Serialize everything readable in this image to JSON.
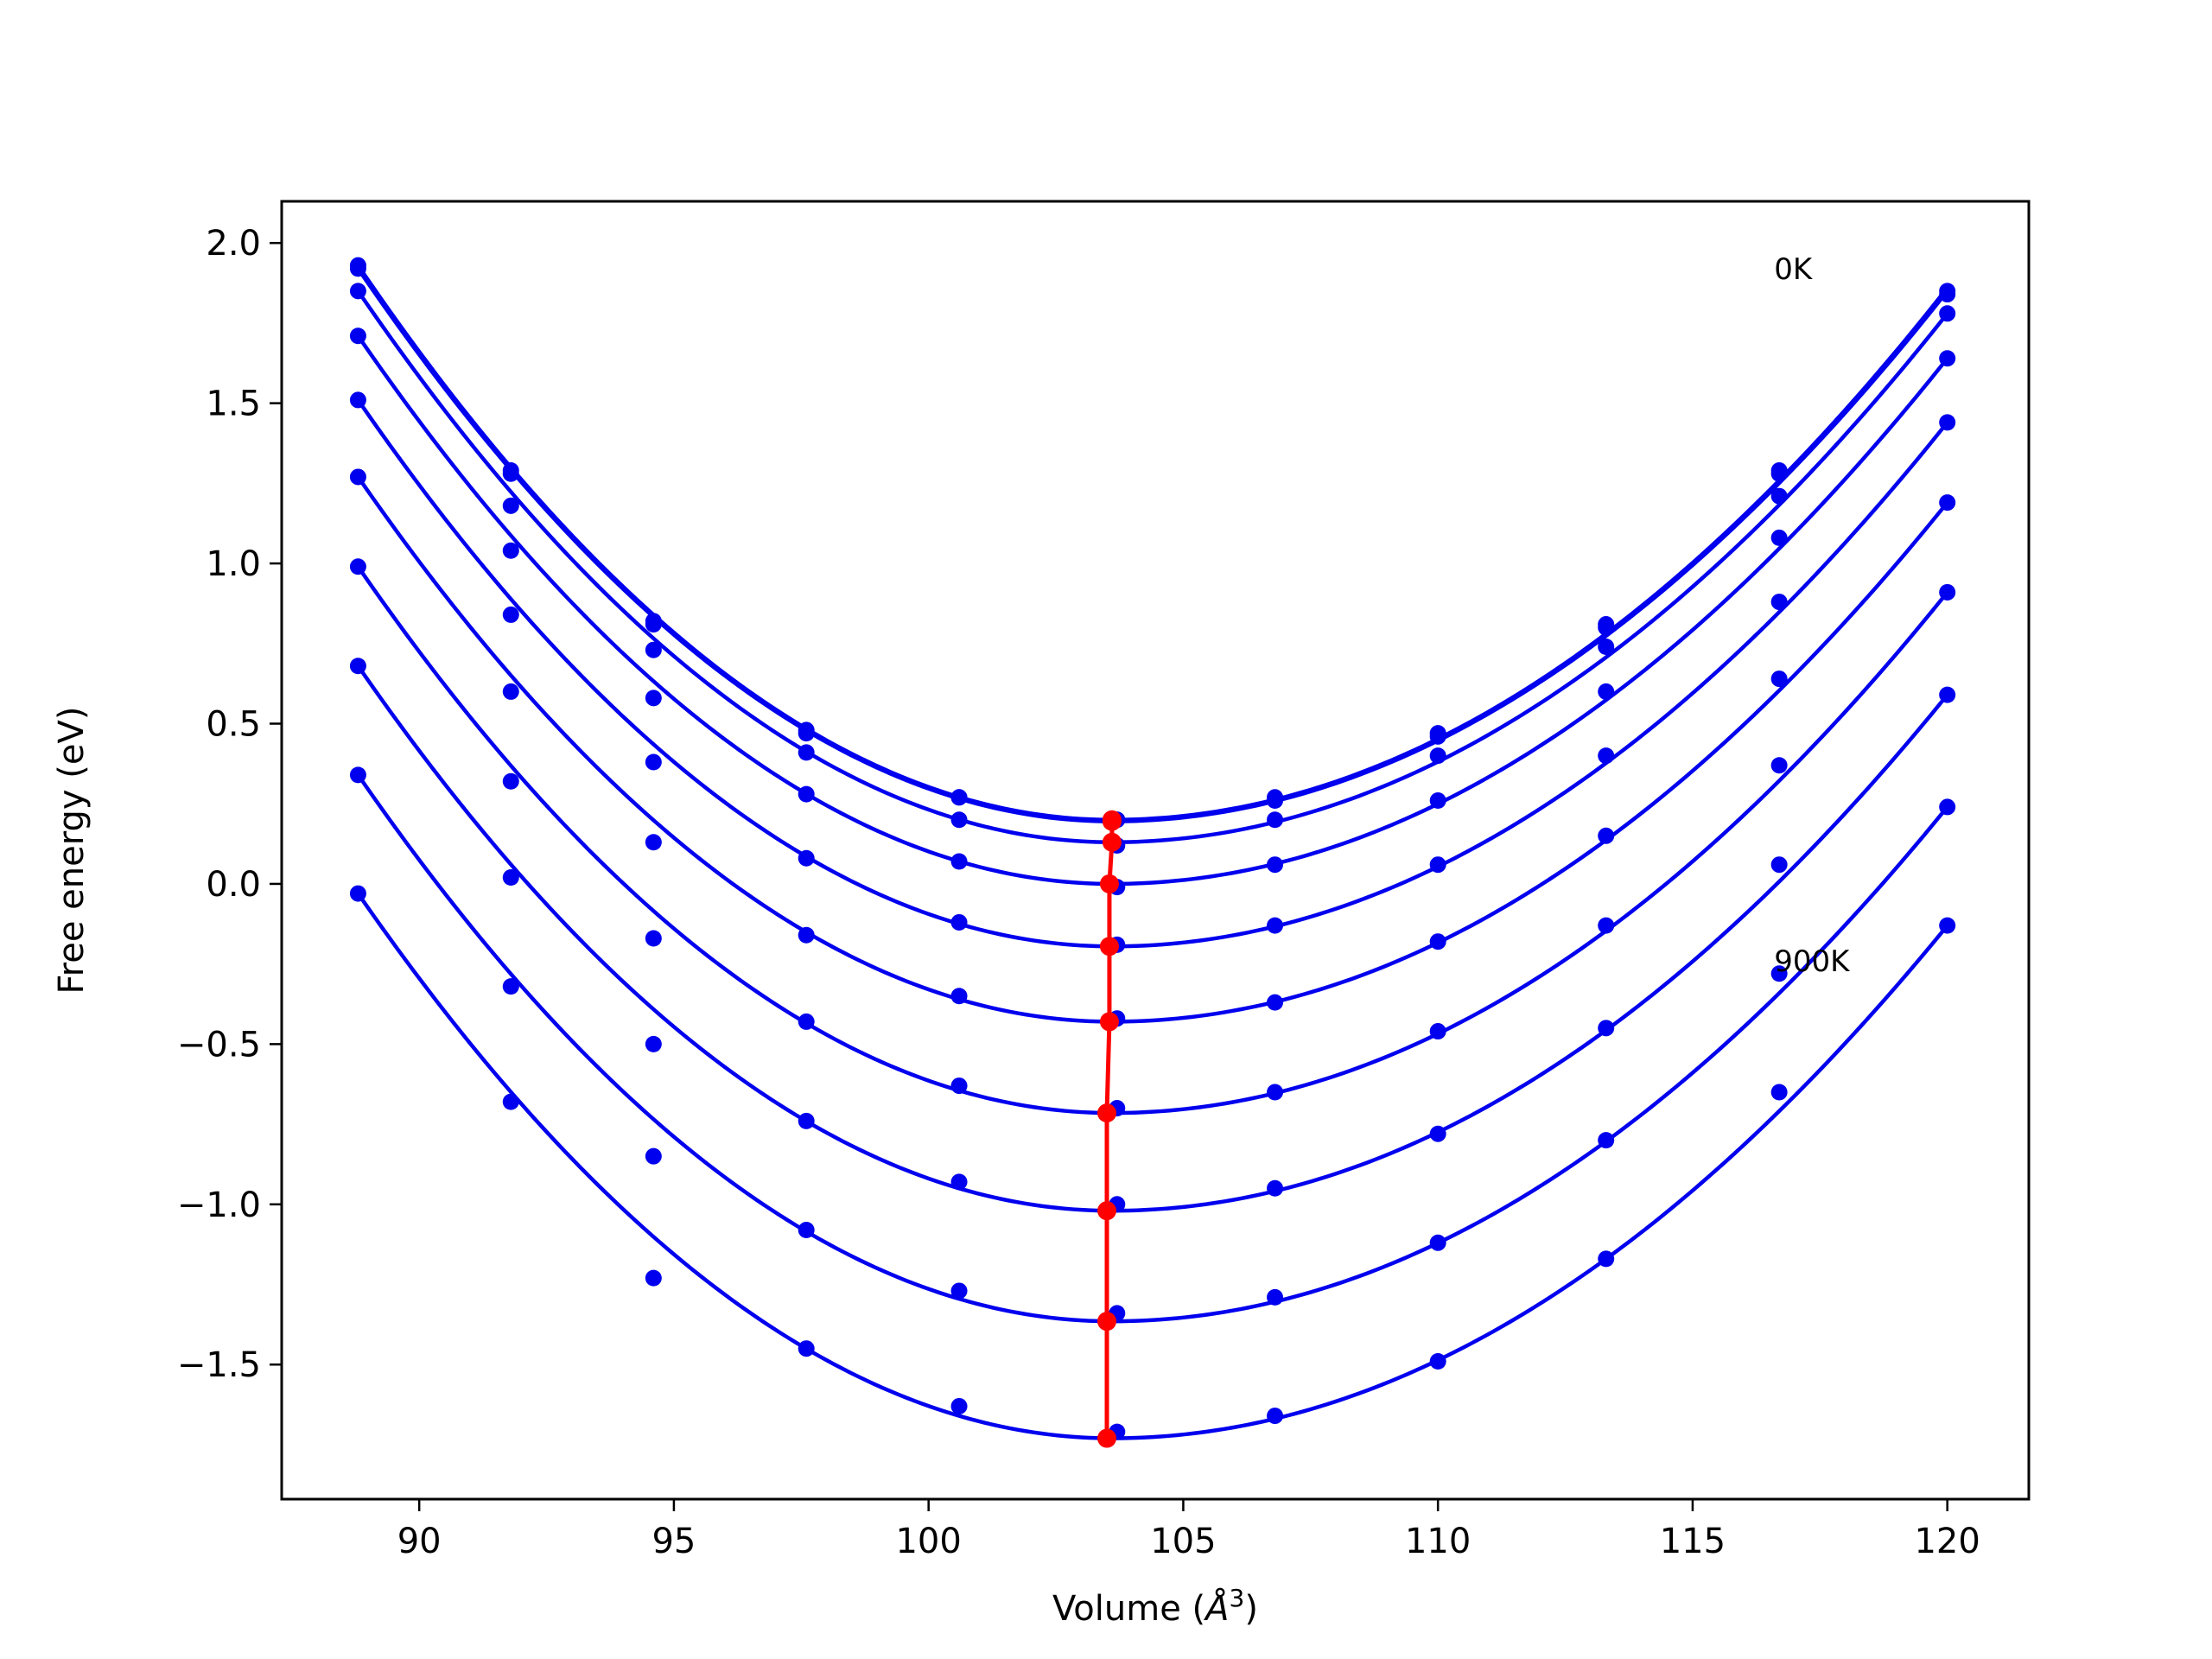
{
  "chart_data": {
    "type": "scatter",
    "title": "",
    "xlabel": "Volume (Å³)",
    "xlabel_base": "Volume (",
    "xlabel_unit": "Å",
    "xlabel_sup": "3",
    "xlabel_close": ")",
    "ylabel": "Free energy (eV)",
    "xlim": [
      87.3,
      121.6
    ],
    "ylim": [
      -1.92,
      2.13
    ],
    "xticks": [
      90,
      95,
      100,
      105,
      110,
      115,
      120
    ],
    "xtick_labels": [
      "90",
      "95",
      "100",
      "105",
      "110",
      "115",
      "120"
    ],
    "yticks": [
      2.0,
      1.5,
      1.0,
      0.5,
      0.0,
      -0.5,
      -1.0,
      -1.5
    ],
    "ytick_labels": [
      "2.0",
      "1.5",
      "1.0",
      "0.5",
      "0.0",
      "−0.5",
      "−1.0",
      "−1.5"
    ],
    "grid": false,
    "annotations": [
      {
        "text": "0K",
        "x": 116.6,
        "y": 1.92
      },
      {
        "text": "900K",
        "x": 116.6,
        "y": -0.24
      }
    ],
    "volumes": [
      88.8,
      91.8,
      94.6,
      97.6,
      100.6,
      103.7,
      106.8,
      110.0,
      113.3,
      116.7,
      120.0
    ],
    "series": [
      {
        "color": "#0000ee",
        "points": [
          1.93,
          1.29,
          0.82,
          0.48,
          0.27,
          0.2,
          0.27,
          0.47,
          0.81,
          1.29,
          1.85
        ],
        "fit": {
          "min_x": 103.6,
          "min_y": 0.2,
          "left": 1.93,
          "right": 1.86
        }
      },
      {
        "color": "#0000ee",
        "points": [
          1.92,
          1.28,
          0.81,
          0.47,
          0.27,
          0.2,
          0.26,
          0.46,
          0.8,
          1.28,
          1.84
        ],
        "fit": {
          "min_x": 103.6,
          "min_y": 0.195,
          "left": 1.92,
          "right": 1.85
        }
      },
      {
        "color": "#0000ee",
        "points": [
          1.85,
          1.18,
          0.73,
          0.41,
          0.2,
          0.12,
          0.2,
          0.4,
          0.74,
          1.21,
          1.78
        ],
        "fit": {
          "min_x": 103.6,
          "min_y": 0.13,
          "left": 1.85,
          "right": 1.78
        }
      },
      {
        "color": "#0000ee",
        "points": [
          1.71,
          1.04,
          0.58,
          0.28,
          0.07,
          -0.01,
          0.06,
          0.26,
          0.6,
          1.08,
          1.64
        ],
        "fit": {
          "min_x": 103.6,
          "min_y": 0.0,
          "left": 1.71,
          "right": 1.64
        }
      },
      {
        "color": "#0000ee",
        "points": [
          1.51,
          0.84,
          0.38,
          0.08,
          -0.12,
          -0.19,
          -0.13,
          0.06,
          0.4,
          0.88,
          1.44
        ],
        "fit": {
          "min_x": 103.6,
          "min_y": -0.195,
          "left": 1.51,
          "right": 1.44
        }
      },
      {
        "color": "#0000ee",
        "points": [
          1.27,
          0.6,
          0.13,
          -0.16,
          -0.35,
          -0.42,
          -0.37,
          -0.18,
          0.15,
          0.64,
          1.19
        ],
        "fit": {
          "min_x": 103.6,
          "min_y": -0.43,
          "left": 1.27,
          "right": 1.19
        }
      },
      {
        "color": "#0000ee",
        "points": [
          0.99,
          0.32,
          -0.17,
          -0.43,
          -0.63,
          -0.7,
          -0.65,
          -0.46,
          -0.13,
          0.37,
          0.91
        ],
        "fit": {
          "min_x": 103.6,
          "min_y": -0.715,
          "left": 0.99,
          "right": 0.91
        }
      },
      {
        "color": "#0000ee",
        "points": [
          0.68,
          0.02,
          -0.5,
          -0.74,
          -0.93,
          -1.0,
          -0.95,
          -0.78,
          -0.45,
          0.06,
          0.59
        ],
        "fit": {
          "min_x": 103.6,
          "min_y": -1.02,
          "left": 0.68,
          "right": 0.59
        }
      },
      {
        "color": "#0000ee",
        "points": [
          0.34,
          -0.32,
          -0.85,
          -1.08,
          -1.27,
          -1.34,
          -1.29,
          -1.12,
          -0.8,
          -0.28,
          0.24
        ],
        "fit": {
          "min_x": 103.6,
          "min_y": -1.365,
          "left": 0.34,
          "right": 0.24
        }
      },
      {
        "color": "#0000ee",
        "points": [
          -0.03,
          -0.68,
          -1.23,
          -1.45,
          -1.63,
          -1.71,
          -1.66,
          -1.49,
          -1.17,
          -0.65,
          -0.13
        ],
        "fit": {
          "min_x": 103.6,
          "min_y": -1.73,
          "left": -0.03,
          "right": -0.13
        }
      }
    ],
    "minima_line": {
      "color": "#ff0000",
      "x": [
        103.6,
        103.6,
        103.6,
        103.55,
        103.55,
        103.55,
        103.5,
        103.5,
        103.5,
        103.5
      ],
      "y": [
        0.2,
        0.195,
        0.13,
        0.0,
        -0.195,
        -0.43,
        -0.715,
        -1.02,
        -1.365,
        -1.73
      ]
    }
  }
}
